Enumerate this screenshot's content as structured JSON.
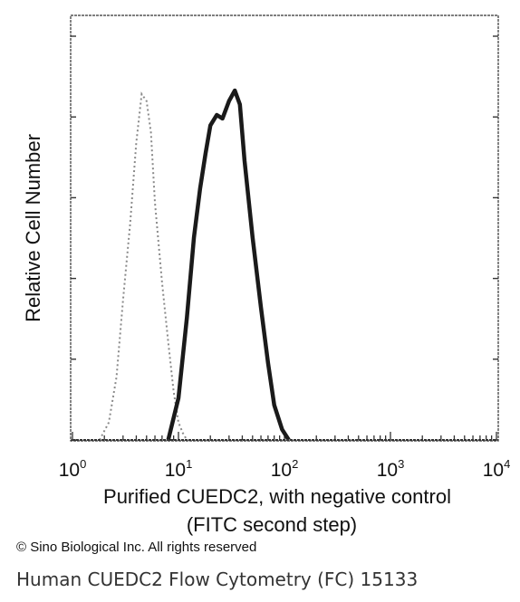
{
  "chart_data": {
    "type": "area",
    "title": "",
    "xlabel_line1": "Purified CUEDC2, with negative control",
    "xlabel_line2": "(FITC second step)",
    "ylabel": "Relative Cell Number",
    "x_scale": "log",
    "xlim": [
      1,
      10000
    ],
    "ylim": [
      0,
      1.0
    ],
    "x_ticks": [
      {
        "base": "10",
        "exp": "0"
      },
      {
        "base": "10",
        "exp": "1"
      },
      {
        "base": "10",
        "exp": "2"
      },
      {
        "base": "10",
        "exp": "3"
      },
      {
        "base": "10",
        "exp": "4"
      }
    ],
    "grid": false,
    "series": [
      {
        "style": "dotted-gray",
        "x": [
          1.8,
          2.2,
          2.6,
          3.0,
          3.5,
          4.0,
          4.5,
          5.0,
          5.5,
          6.0,
          7.0,
          8.0,
          9.0,
          10.0,
          11.0,
          12.0
        ],
        "y": [
          0.0,
          0.05,
          0.18,
          0.4,
          0.62,
          0.85,
          0.99,
          0.97,
          0.88,
          0.68,
          0.45,
          0.28,
          0.14,
          0.05,
          0.02,
          0.0
        ]
      },
      {
        "style": "solid-black",
        "x": [
          8,
          10,
          12,
          14,
          16,
          18,
          20,
          23,
          26,
          30,
          34,
          38,
          42,
          50,
          60,
          70,
          80,
          95,
          110
        ],
        "y": [
          0.0,
          0.12,
          0.35,
          0.58,
          0.72,
          0.82,
          0.9,
          0.93,
          0.92,
          0.97,
          1.0,
          0.96,
          0.8,
          0.58,
          0.38,
          0.22,
          0.1,
          0.03,
          0.0
        ]
      }
    ]
  },
  "copyright": "© Sino Biological Inc. All rights reserved",
  "caption": "Human CUEDC2 Flow Cytometry (FC) 15133"
}
